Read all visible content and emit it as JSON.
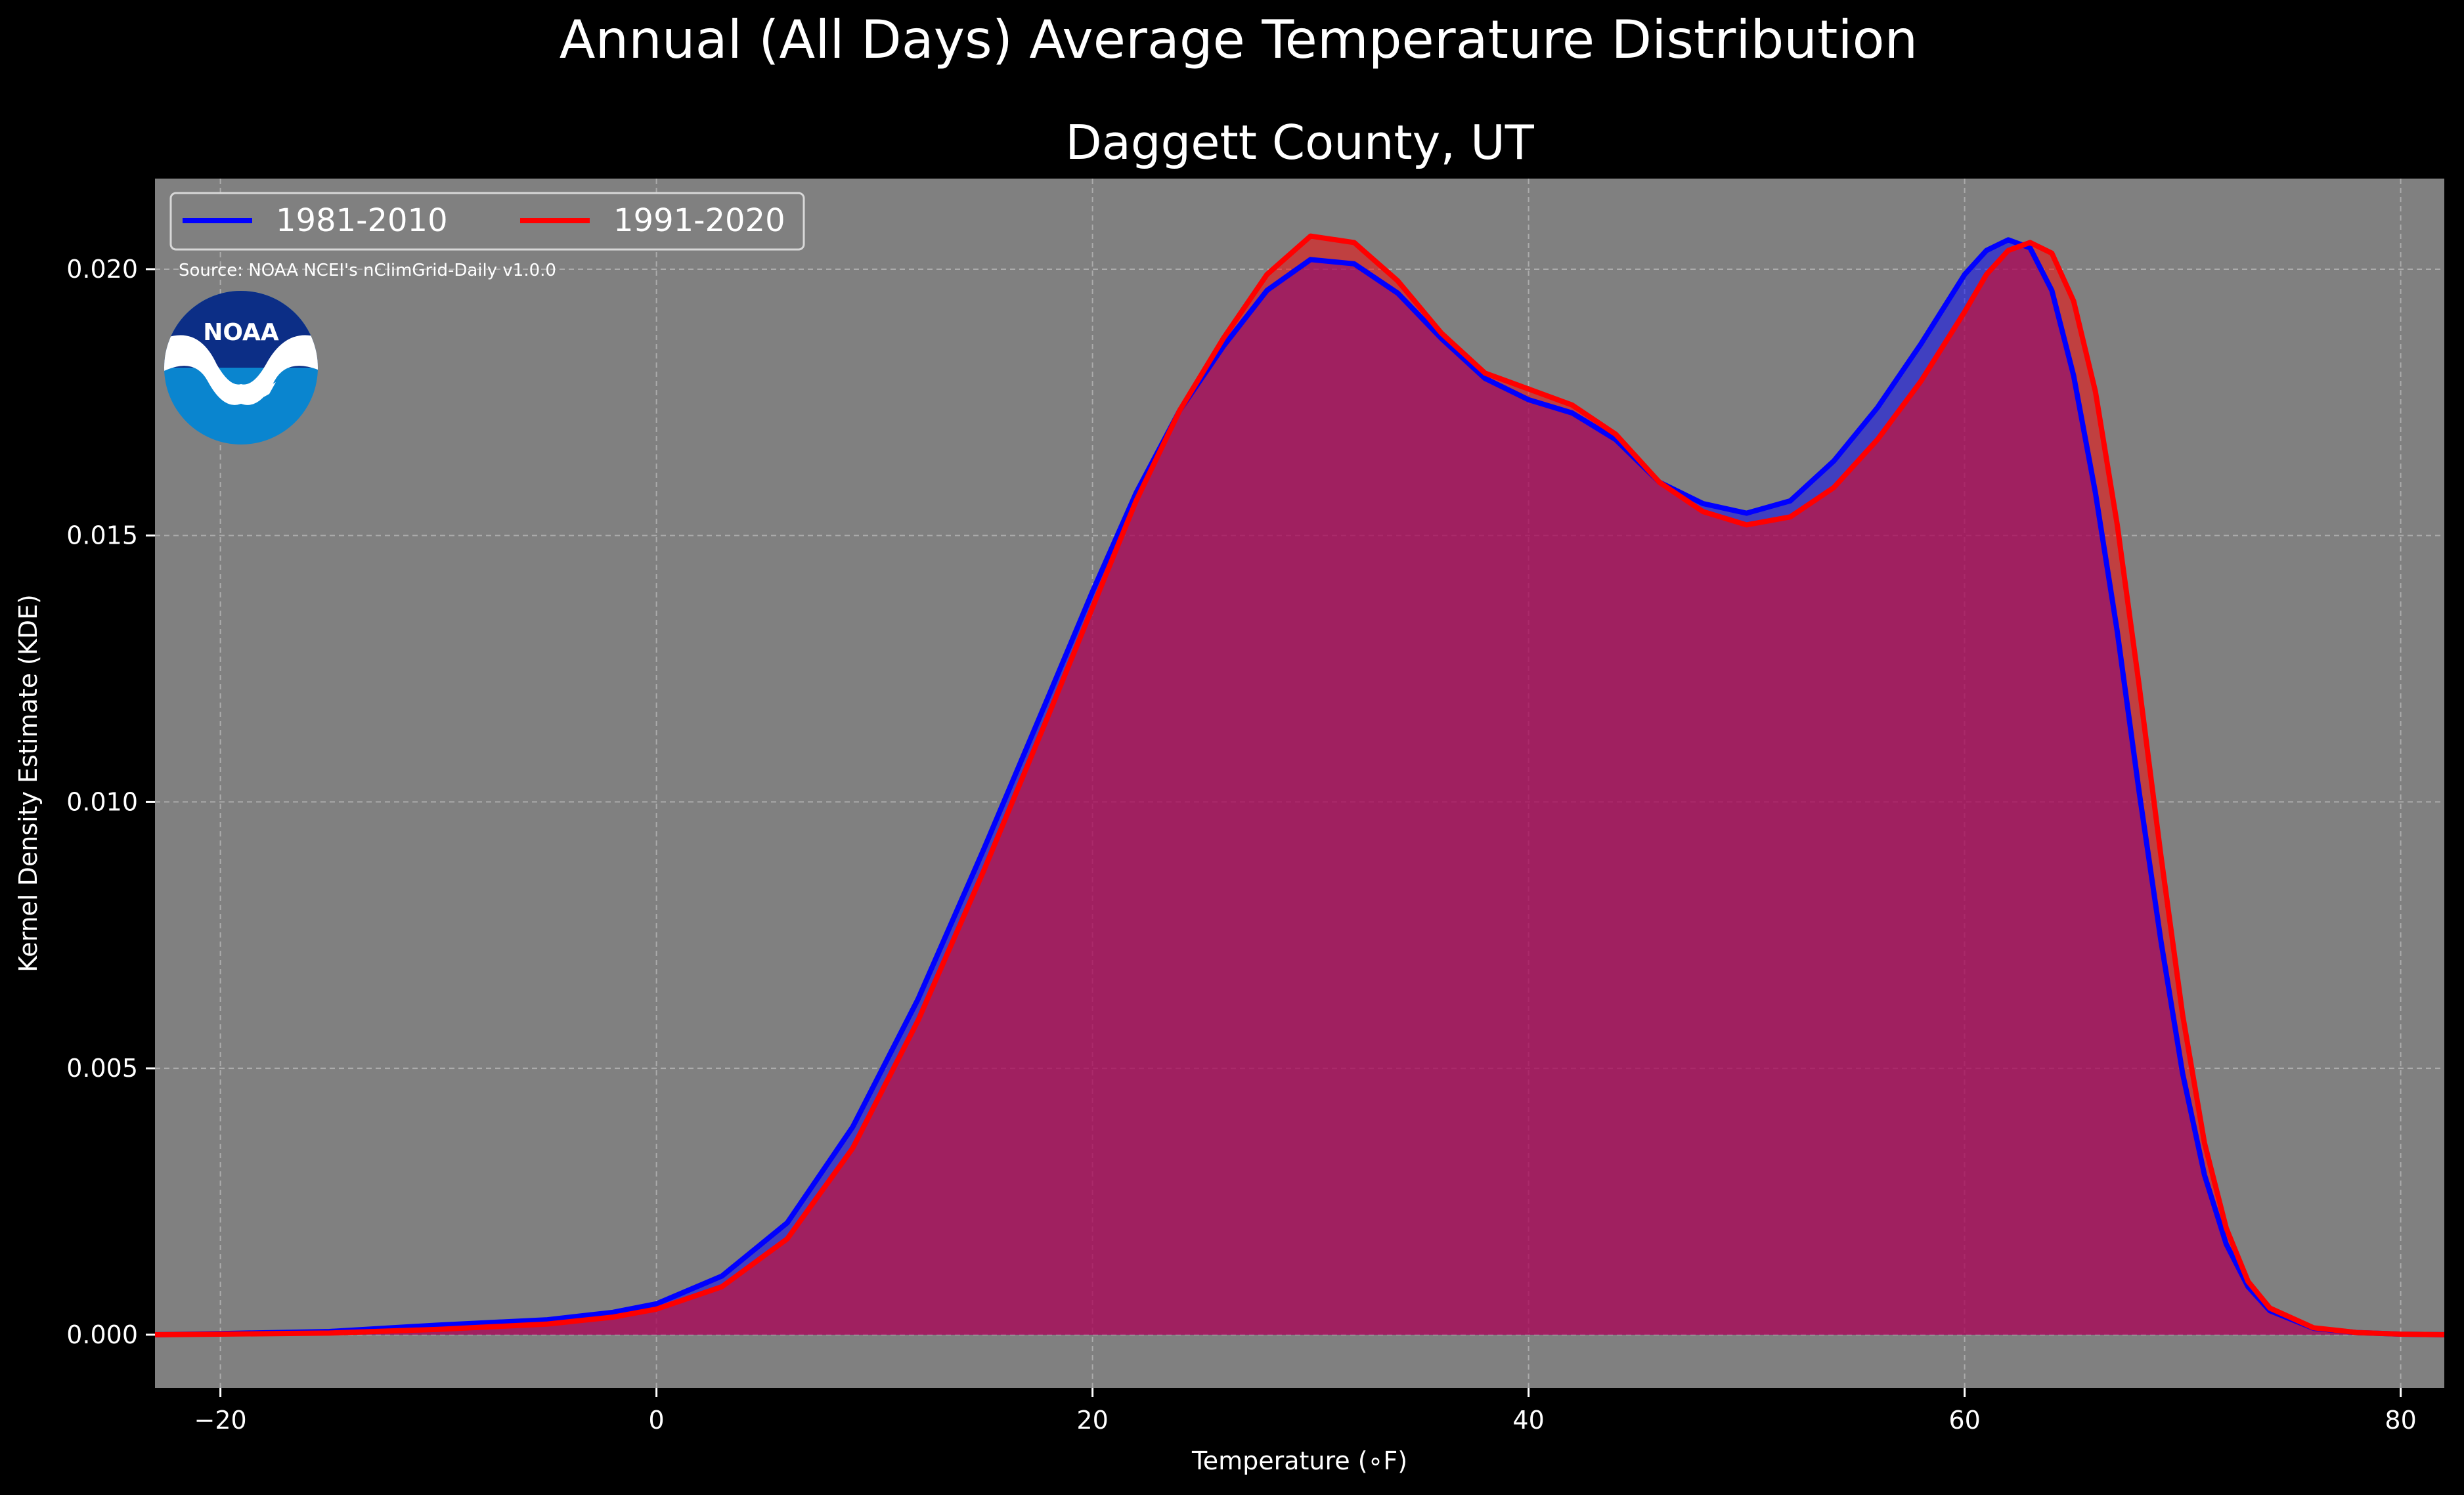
{
  "figure": {
    "suptitle": "Annual (All Days) Average Temperature Distribution",
    "background": "#000000"
  },
  "chart_data": {
    "type": "area",
    "title": "Daggett County, UT",
    "xlabel": "Temperature (∘F)",
    "ylabel": "Kernel Density Estimate (KDE)",
    "source_note": "Source: NOAA NCEI's nClimGrid-Daily v1.0.0",
    "logo_text": "NOAA",
    "xlim": [
      -23,
      82
    ],
    "ylim": [
      -0.001,
      0.0217
    ],
    "xticks": [
      -20,
      0,
      20,
      40,
      60,
      80
    ],
    "xtick_labels": [
      "−20",
      "0",
      "20",
      "40",
      "60",
      "80"
    ],
    "yticks": [
      0.0,
      0.005,
      0.01,
      0.015,
      0.02
    ],
    "ytick_labels": [
      "0.000",
      "0.005",
      "0.010",
      "0.015",
      "0.020"
    ],
    "grid": true,
    "legend_position": "top-left",
    "plot_background": "#808080",
    "series": [
      {
        "name": "1981-2010",
        "color": "#0000ff",
        "x": [
          -23,
          -20,
          -15,
          -10,
          -5,
          -2,
          0,
          3,
          6,
          9,
          12,
          15,
          18,
          20,
          22,
          24,
          26,
          28,
          30,
          32,
          34,
          36,
          38,
          40,
          42,
          44,
          46,
          48,
          50,
          52,
          54,
          56,
          58,
          60,
          61,
          62,
          63,
          64,
          65,
          66,
          67,
          68,
          69,
          70,
          71,
          72,
          73,
          74,
          76,
          78,
          80,
          82
        ],
        "y": [
          0.0,
          2e-05,
          6e-05,
          0.00018,
          0.00028,
          0.00042,
          0.00058,
          0.0011,
          0.0021,
          0.0039,
          0.0063,
          0.0091,
          0.012,
          0.01395,
          0.0158,
          0.01735,
          0.01855,
          0.0196,
          0.02018,
          0.0201,
          0.01955,
          0.0187,
          0.01795,
          0.01755,
          0.0173,
          0.0168,
          0.016,
          0.0156,
          0.01542,
          0.01565,
          0.0164,
          0.0174,
          0.0186,
          0.0199,
          0.02035,
          0.02055,
          0.0204,
          0.0196,
          0.018,
          0.0158,
          0.0132,
          0.0102,
          0.0074,
          0.0049,
          0.003,
          0.0017,
          0.0009,
          0.00045,
          0.00012,
          4e-05,
          1e-05,
          0.0
        ]
      },
      {
        "name": "1991-2020",
        "color": "#ff0000",
        "x": [
          -23,
          -20,
          -15,
          -10,
          -5,
          -2,
          0,
          3,
          6,
          9,
          12,
          15,
          18,
          20,
          22,
          24,
          26,
          28,
          30,
          32,
          34,
          36,
          38,
          40,
          42,
          44,
          46,
          48,
          50,
          52,
          54,
          56,
          58,
          60,
          61,
          62,
          63,
          64,
          65,
          66,
          67,
          68,
          69,
          70,
          71,
          72,
          73,
          74,
          76,
          78,
          80,
          82
        ],
        "y": [
          0.0,
          1e-05,
          3e-05,
          0.0001,
          0.0002,
          0.00033,
          0.00048,
          0.0009,
          0.0018,
          0.0035,
          0.0059,
          0.0087,
          0.01165,
          0.01365,
          0.01565,
          0.01735,
          0.0187,
          0.0199,
          0.02062,
          0.0205,
          0.01978,
          0.0188,
          0.01805,
          0.01775,
          0.01745,
          0.0169,
          0.016,
          0.01545,
          0.0152,
          0.01535,
          0.0159,
          0.0168,
          0.0179,
          0.0192,
          0.0199,
          0.02035,
          0.0205,
          0.0203,
          0.0194,
          0.0177,
          0.0152,
          0.0122,
          0.009,
          0.006,
          0.0036,
          0.002,
          0.001,
          0.0005,
          0.00013,
          4e-05,
          1e-05,
          0.0
        ]
      }
    ]
  }
}
